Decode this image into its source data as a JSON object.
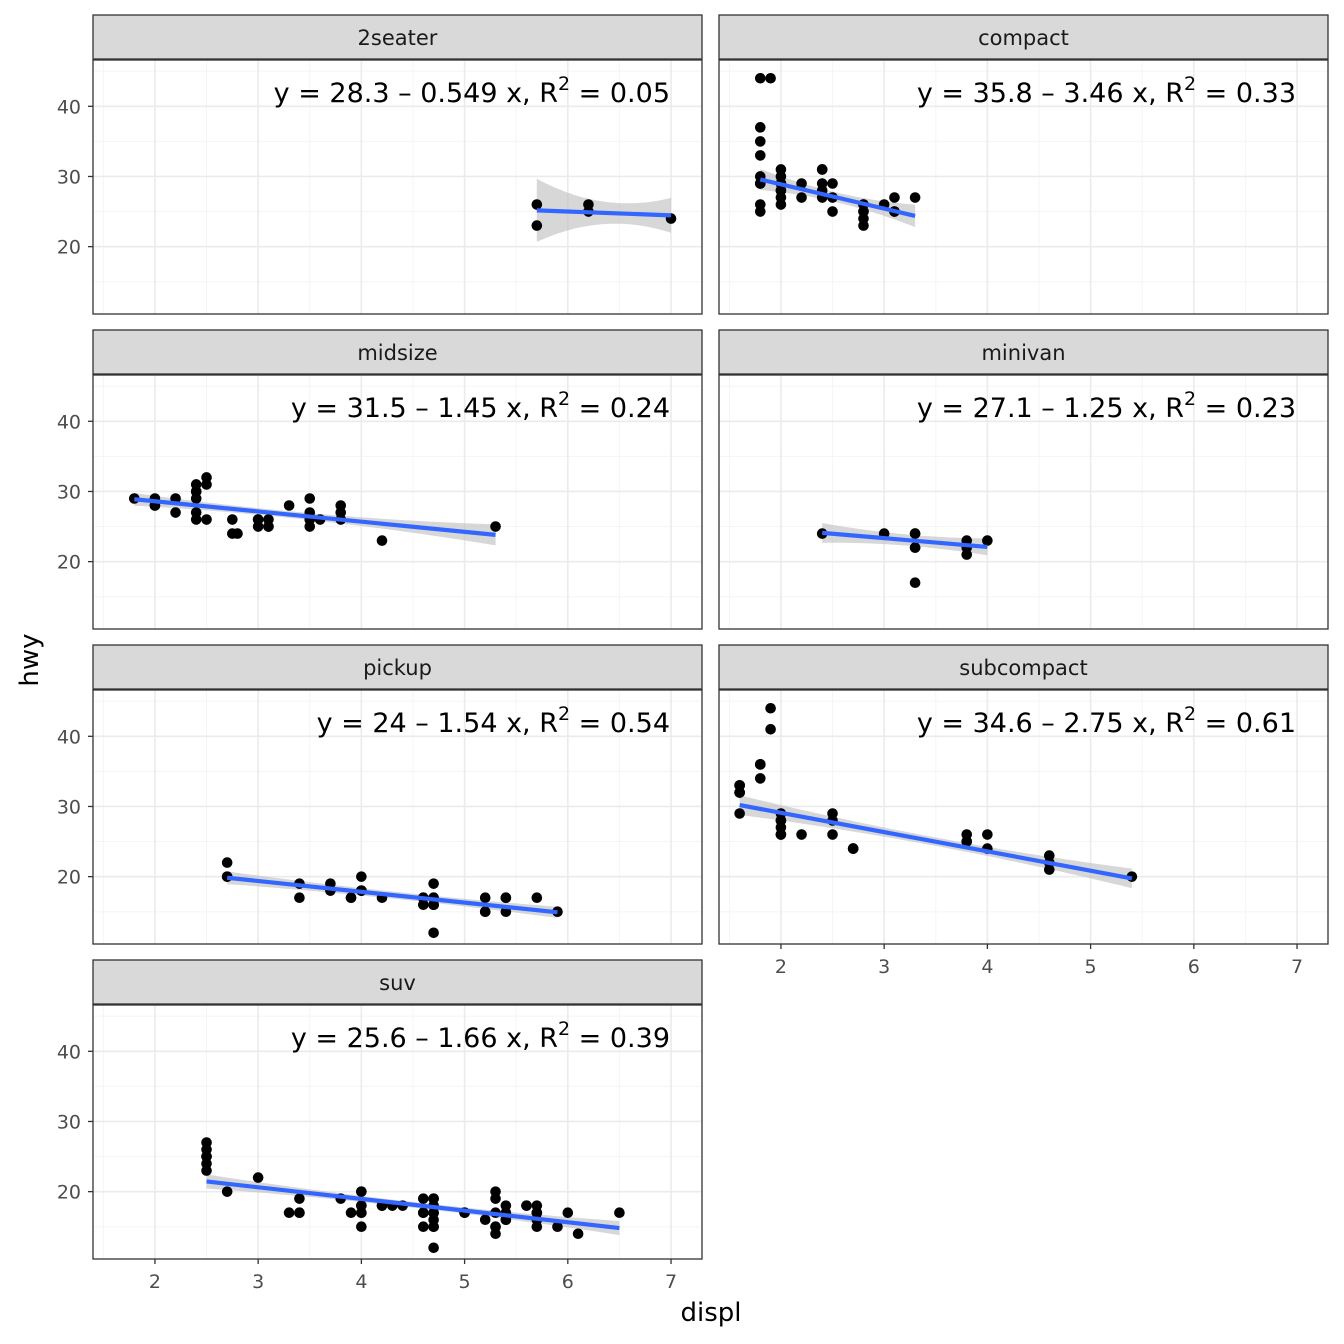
{
  "chart_data": {
    "type": "scatter",
    "xlabel": "displ",
    "ylabel": "hwy",
    "xlim": [
      1.4,
      7.3
    ],
    "ylim": [
      10.4,
      46.6
    ],
    "x_ticks": [
      2,
      3,
      4,
      5,
      6,
      7
    ],
    "y_ticks": [
      20,
      30,
      40
    ],
    "grid": true,
    "colors": {
      "points": "#000000",
      "fit_line": "#3366FF",
      "ribbon": "#BDBDBD",
      "strip_bg": "#D9D9D9",
      "grid_major": "#EBEBEB",
      "grid_minor": "#F5F5F5"
    },
    "panels": [
      {
        "name": "2seater",
        "equation": "y = 28.3 – 0.549 x,  R² = 0.05",
        "eq_parts": {
          "lhs": "y = 28.3 – 0.549 x,  R",
          "sup": "2",
          "rhs": " = 0.05"
        },
        "fit": {
          "intercept": 28.3,
          "slope": -0.549,
          "x_range": [
            5.7,
            7.0
          ],
          "se": [
            4.5,
            1.6,
            2.5
          ]
        },
        "points": [
          [
            5.7,
            26
          ],
          [
            5.7,
            23
          ],
          [
            6.2,
            26
          ],
          [
            6.2,
            25
          ],
          [
            7.0,
            24
          ]
        ]
      },
      {
        "name": "compact",
        "equation": "y = 35.8 – 3.46 x,  R² = 0.33",
        "eq_parts": {
          "lhs": "y = 35.8 – 3.46 x,  R",
          "sup": "2",
          "rhs": " = 0.33"
        },
        "fit": {
          "intercept": 35.8,
          "slope": -3.46,
          "x_range": [
            1.8,
            3.3
          ],
          "se": [
            1.5,
            0.7,
            1.6
          ]
        },
        "points": [
          [
            1.8,
            29
          ],
          [
            1.8,
            29
          ],
          [
            2.0,
            31
          ],
          [
            2.0,
            30
          ],
          [
            2.8,
            26
          ],
          [
            2.8,
            26
          ],
          [
            3.1,
            27
          ],
          [
            1.8,
            26
          ],
          [
            1.8,
            25
          ],
          [
            2.0,
            28
          ],
          [
            2.0,
            27
          ],
          [
            2.8,
            25
          ],
          [
            2.8,
            25
          ],
          [
            3.1,
            25
          ],
          [
            3.1,
            25
          ],
          [
            2.2,
            27
          ],
          [
            2.2,
            29
          ],
          [
            2.4,
            31
          ],
          [
            2.4,
            31
          ],
          [
            3.0,
            26
          ],
          [
            3.3,
            27
          ],
          [
            1.8,
            44
          ],
          [
            1.8,
            35
          ],
          [
            1.8,
            37
          ],
          [
            1.8,
            33
          ],
          [
            1.8,
            29
          ],
          [
            1.8,
            30
          ],
          [
            2.0,
            29
          ],
          [
            2.0,
            26
          ],
          [
            2.0,
            29
          ],
          [
            2.5,
            29
          ],
          [
            2.5,
            27
          ],
          [
            2.5,
            25
          ],
          [
            2.4,
            27
          ],
          [
            2.4,
            28
          ],
          [
            2.4,
            29
          ],
          [
            2.8,
            23
          ],
          [
            2.8,
            24
          ],
          [
            1.9,
            44
          ],
          [
            2.0,
            29
          ],
          [
            2.0,
            28
          ]
        ]
      },
      {
        "name": "midsize",
        "equation": "y = 31.5 – 1.45 x,  R² = 0.24",
        "eq_parts": {
          "lhs": "y = 31.5 – 1.45 x,  R",
          "sup": "2",
          "rhs": " = 0.24"
        },
        "fit": {
          "intercept": 31.5,
          "slope": -1.45,
          "x_range": [
            1.8,
            5.3
          ],
          "se": [
            0.9,
            0.5,
            1.5
          ]
        },
        "points": [
          [
            2.8,
            24
          ],
          [
            3.1,
            25
          ],
          [
            4.2,
            23
          ],
          [
            5.3,
            25
          ],
          [
            1.8,
            29
          ],
          [
            2.0,
            29
          ],
          [
            2.0,
            28
          ],
          [
            2.4,
            29
          ],
          [
            2.4,
            30
          ],
          [
            2.4,
            31
          ],
          [
            2.5,
            32
          ],
          [
            2.5,
            31
          ],
          [
            2.5,
            26
          ],
          [
            3.0,
            26
          ],
          [
            3.3,
            28
          ],
          [
            3.5,
            29
          ],
          [
            3.5,
            27
          ],
          [
            3.5,
            26
          ],
          [
            3.8,
            28
          ],
          [
            3.8,
            27
          ],
          [
            3.8,
            26
          ],
          [
            2.2,
            29
          ],
          [
            2.2,
            27
          ],
          [
            2.4,
            26
          ],
          [
            2.4,
            27
          ],
          [
            2.75,
            26
          ],
          [
            2.75,
            24
          ],
          [
            3.0,
            25
          ],
          [
            3.0,
            26
          ],
          [
            3.1,
            25
          ],
          [
            3.1,
            26
          ],
          [
            3.5,
            25
          ],
          [
            3.5,
            26
          ],
          [
            3.6,
            26
          ],
          [
            2.0,
            28
          ],
          [
            2.4,
            30
          ]
        ]
      },
      {
        "name": "minivan",
        "equation": "y = 27.1 – 1.25 x,  R² = 0.23",
        "eq_parts": {
          "lhs": "y = 27.1 – 1.25 x,  R",
          "sup": "2",
          "rhs": " = 0.23"
        },
        "fit": {
          "intercept": 27.1,
          "slope": -1.25,
          "x_range": [
            2.4,
            4.0
          ],
          "se": [
            1.4,
            0.8,
            1.2
          ]
        },
        "points": [
          [
            2.4,
            24
          ],
          [
            3.0,
            24
          ],
          [
            3.3,
            22
          ],
          [
            3.3,
            22
          ],
          [
            3.3,
            24
          ],
          [
            3.3,
            24
          ],
          [
            3.3,
            17
          ],
          [
            3.8,
            22
          ],
          [
            3.8,
            21
          ],
          [
            3.8,
            23
          ],
          [
            4.0,
            23
          ]
        ]
      },
      {
        "name": "pickup",
        "equation": "y = 24 – 1.54 x,  R² = 0.54",
        "eq_parts": {
          "lhs": "y = 24 – 1.54 x,  R",
          "sup": "2",
          "rhs": " = 0.54"
        },
        "fit": {
          "intercept": 24,
          "slope": -1.54,
          "x_range": [
            2.7,
            5.9
          ],
          "se": [
            0.9,
            0.5,
            0.8
          ]
        },
        "points": [
          [
            2.7,
            20
          ],
          [
            2.7,
            22
          ],
          [
            2.7,
            20
          ],
          [
            3.4,
            19
          ],
          [
            3.4,
            17
          ],
          [
            3.7,
            18
          ],
          [
            3.7,
            19
          ],
          [
            3.9,
            17
          ],
          [
            4.0,
            18
          ],
          [
            4.0,
            20
          ],
          [
            4.0,
            18
          ],
          [
            4.2,
            17
          ],
          [
            4.6,
            17
          ],
          [
            4.6,
            16
          ],
          [
            4.7,
            16
          ],
          [
            4.7,
            12
          ],
          [
            4.7,
            17
          ],
          [
            4.7,
            19
          ],
          [
            4.7,
            16
          ],
          [
            5.2,
            15
          ],
          [
            5.2,
            17
          ],
          [
            5.4,
            15
          ],
          [
            5.4,
            17
          ],
          [
            5.7,
            17
          ],
          [
            5.9,
            15
          ],
          [
            4.7,
            16
          ],
          [
            4.6,
            17
          ],
          [
            5.2,
            15
          ],
          [
            5.4,
            17
          ],
          [
            4.7,
            17
          ],
          [
            3.9,
            17
          ],
          [
            4.0,
            18
          ],
          [
            4.7,
            16
          ]
        ]
      },
      {
        "name": "subcompact",
        "equation": "y = 34.6 – 2.75 x,  R² = 0.61",
        "eq_parts": {
          "lhs": "y = 34.6 – 2.75 x,  R",
          "sup": "2",
          "rhs": " = 0.61"
        },
        "fit": {
          "intercept": 34.6,
          "slope": -2.75,
          "x_range": [
            1.6,
            5.4
          ],
          "se": [
            1.4,
            0.6,
            1.4
          ]
        },
        "points": [
          [
            1.6,
            33
          ],
          [
            1.6,
            32
          ],
          [
            1.6,
            32
          ],
          [
            1.6,
            29
          ],
          [
            1.6,
            32
          ],
          [
            1.8,
            34
          ],
          [
            1.8,
            36
          ],
          [
            1.8,
            36
          ],
          [
            2.0,
            29
          ],
          [
            2.0,
            26
          ],
          [
            2.0,
            27
          ],
          [
            2.0,
            28
          ],
          [
            2.2,
            26
          ],
          [
            2.5,
            29
          ],
          [
            2.5,
            26
          ],
          [
            2.7,
            24
          ],
          [
            2.7,
            24
          ],
          [
            1.9,
            44
          ],
          [
            1.9,
            41
          ],
          [
            3.8,
            26
          ],
          [
            3.8,
            25
          ],
          [
            4.0,
            26
          ],
          [
            4.0,
            24
          ],
          [
            4.6,
            21
          ],
          [
            4.6,
            22
          ],
          [
            4.6,
            23
          ],
          [
            5.4,
            20
          ],
          [
            2.5,
            28
          ],
          [
            2.7,
            24
          ],
          [
            2.0,
            28
          ],
          [
            3.8,
            25
          ],
          [
            1.6,
            33
          ],
          [
            1.6,
            33
          ],
          [
            1.8,
            36
          ],
          [
            2.0,
            26
          ]
        ]
      },
      {
        "name": "suv",
        "equation": "y = 25.6 – 1.66 x,  R² = 0.39",
        "eq_parts": {
          "lhs": "y = 25.6 – 1.66 x,  R",
          "sup": "2",
          "rhs": " = 0.39"
        },
        "fit": {
          "intercept": 25.6,
          "slope": -1.66,
          "x_range": [
            2.5,
            6.5
          ],
          "se": [
            1.0,
            0.4,
            1.0
          ]
        },
        "points": [
          [
            5.7,
            17
          ],
          [
            5.3,
            15
          ],
          [
            5.3,
            20
          ],
          [
            5.3,
            17
          ],
          [
            5.7,
            17
          ],
          [
            6.5,
            17
          ],
          [
            6.0,
            17
          ],
          [
            3.8,
            19
          ],
          [
            4.0,
            18
          ],
          [
            4.0,
            17
          ],
          [
            4.6,
            17
          ],
          [
            5.0,
            17
          ],
          [
            5.7,
            15
          ],
          [
            4.7,
            19
          ],
          [
            4.7,
            12
          ],
          [
            4.7,
            17
          ],
          [
            5.7,
            18
          ],
          [
            6.1,
            14
          ],
          [
            5.4,
            18
          ],
          [
            5.4,
            16
          ],
          [
            5.9,
            15
          ],
          [
            4.0,
            15
          ],
          [
            4.0,
            17
          ],
          [
            4.6,
            15
          ],
          [
            5.0,
            17
          ],
          [
            4.2,
            18
          ],
          [
            4.4,
            18
          ],
          [
            4.6,
            19
          ],
          [
            5.4,
            17
          ],
          [
            2.5,
            23
          ],
          [
            2.5,
            25
          ],
          [
            2.5,
            26
          ],
          [
            2.5,
            27
          ],
          [
            2.5,
            24
          ],
          [
            2.7,
            20
          ],
          [
            3.0,
            22
          ],
          [
            3.3,
            17
          ],
          [
            3.4,
            17
          ],
          [
            3.4,
            19
          ],
          [
            4.0,
            20
          ],
          [
            4.7,
            17
          ],
          [
            4.7,
            15
          ],
          [
            4.7,
            16
          ],
          [
            5.2,
            16
          ],
          [
            5.3,
            14
          ],
          [
            5.3,
            19
          ],
          [
            5.6,
            18
          ],
          [
            2.5,
            25
          ],
          [
            4.7,
            19
          ],
          [
            5.4,
            16
          ],
          [
            4.0,
            18
          ],
          [
            4.6,
            17
          ],
          [
            5.6,
            18
          ],
          [
            3.4,
            17
          ],
          [
            4.3,
            18
          ],
          [
            4.7,
            18
          ],
          [
            4.2,
            18
          ],
          [
            3.9,
            17
          ],
          [
            4.0,
            20
          ],
          [
            4.7,
            15
          ],
          [
            5.3,
            15
          ],
          [
            5.7,
            16
          ]
        ]
      }
    ]
  }
}
